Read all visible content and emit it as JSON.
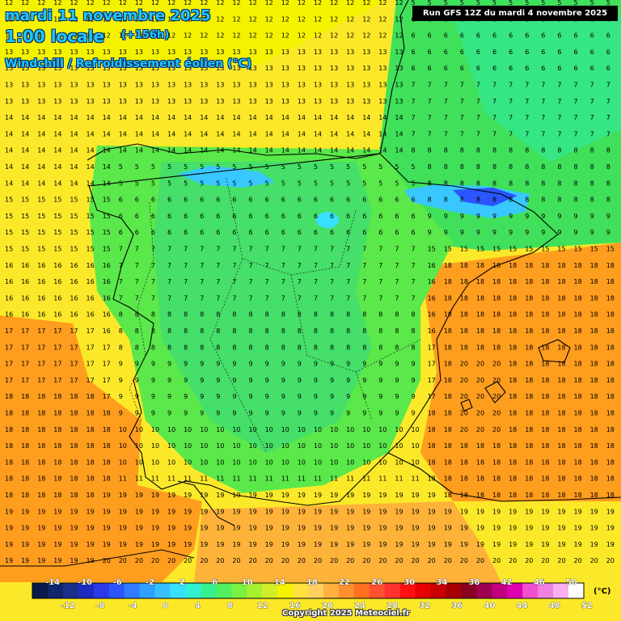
{
  "header": {
    "date": "mardi 11 novembre 2025",
    "local_time": "1:00 locale",
    "lead_time": "(+156h)",
    "variable": "Windchill / Refroidissement éolien (°C)"
  },
  "run_info": "Run GFS 12Z du mardi 4 novembre 2025",
  "copyright": "Copyright 2025 Meteociel.fr",
  "legend": {
    "unit": "(°C)",
    "top_labels": [
      "-14",
      "-10",
      "-6",
      "-2",
      "2",
      "6",
      "10",
      "14",
      "18",
      "22",
      "26",
      "30",
      "34",
      "38",
      "42",
      "46",
      "50"
    ],
    "bottom_labels": [
      "-12",
      "-8",
      "-4",
      "0",
      "4",
      "8",
      "12",
      "16",
      "20",
      "24",
      "28",
      "32",
      "36",
      "40",
      "44",
      "48",
      "52"
    ],
    "colors": [
      "#0a1a4a",
      "#10256a",
      "#1a2e8c",
      "#1f2ac0",
      "#2a3ae6",
      "#2a55ff",
      "#2f7cff",
      "#2fa0ff",
      "#36c0ff",
      "#38e0ff",
      "#30f0d0",
      "#36f090",
      "#50f060",
      "#7af040",
      "#a6f030",
      "#cff026",
      "#f5f200",
      "#ffe040",
      "#ffd060",
      "#ffb040",
      "#ff9030",
      "#ff7020",
      "#ff5030",
      "#ff3030",
      "#ff1010",
      "#e80000",
      "#c80000",
      "#a80000",
      "#880020",
      "#a00050",
      "#c00080",
      "#e000b0",
      "#f050d0",
      "#f080e0",
      "#f8b0f0",
      "#ffffff"
    ]
  },
  "colors": {
    "sea_warm": "#ff9d1e",
    "sea_mild": "#f5f200",
    "land_cool": "#40e05a",
    "land_cold": "#38e0ff",
    "title_text": "#1ec8ff"
  }
}
